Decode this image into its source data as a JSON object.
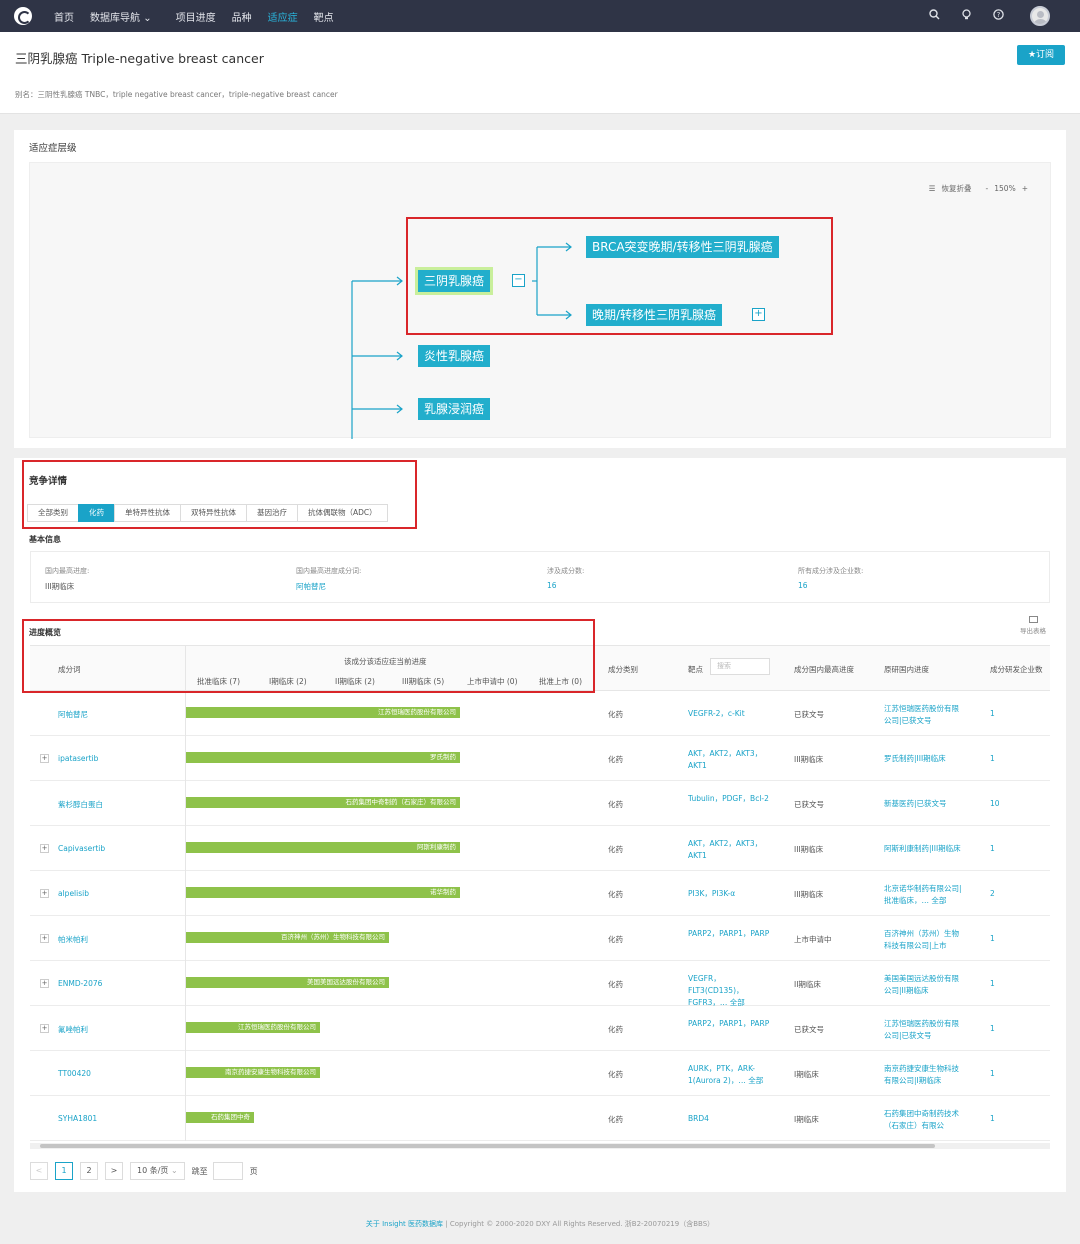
{
  "nav": {
    "items": [
      "首页",
      "数据库导航",
      "项目进度",
      "品种",
      "适应症",
      "靶点"
    ],
    "active": "适应症",
    "dropdown_caret": "⌄"
  },
  "header": {
    "title": "三阴乳腺癌 Triple-negative breast cancer",
    "subscribe": "★订阅",
    "aliases": "别名：三阴性乳腺癌 TNBC，triple negative breast cancer，triple-negative breast cancer"
  },
  "indication": {
    "title": "适应症层级",
    "tools": {
      "toggle_all": "恢复折叠",
      "zoom_minus": "-",
      "zoom": "150%",
      "zoom_plus": "+"
    },
    "nodes": {
      "root": "三阴乳腺癌",
      "child1": "BRCA突变晚期/转移性三阴乳腺癌",
      "child2": "晚期/转移性三阴乳腺癌",
      "sibling1": "炎性乳腺癌",
      "sibling2": "乳腺浸润癌"
    },
    "collapse": "−",
    "expand": "+"
  },
  "competition": {
    "title": "竞争详情",
    "tabs": [
      "全部类别",
      "化药",
      "单特异性抗体",
      "双特异性抗体",
      "基因治疗",
      "抗体偶联物（ADC）"
    ],
    "active_tab": "化药",
    "basic_label": "基本信息",
    "basic": [
      {
        "label": "国内最高进度:",
        "value": "III期临床"
      },
      {
        "label": "国内最高进度成分词:",
        "value": "阿帕替尼"
      },
      {
        "label": "涉及成分数:",
        "value": "16"
      },
      {
        "label": "所有成分涉及企业数:",
        "value": "16"
      }
    ],
    "progress_label": "进度概览",
    "export": "导出表格"
  },
  "table": {
    "headers": {
      "ingredient": "成分词",
      "stage_group": "该成分该适应症当前进度",
      "stages": [
        "批准临床 (7)",
        "I期临床 (2)",
        "II期临床 (2)",
        "III期临床 (5)",
        "上市申请中 (0)",
        "批准上市 (0)"
      ],
      "category": "成分类别",
      "target": "靶点",
      "search_placeholder": "搜索",
      "domestic": "成分国内最高进度",
      "original": "原研国内进度",
      "companies": "成分研发企业数"
    },
    "rows": [
      {
        "name": "阿帕替尼",
        "expand": false,
        "bar": "江苏恒瑞医药股份有限公司",
        "bar_frac": 1.0,
        "category": "化药",
        "target": "VEGFR-2，c-Kit",
        "domestic": "已获文号",
        "original": "江苏恒瑞医药股份有限公司|已获文号",
        "count": "1"
      },
      {
        "name": "ipatasertib",
        "expand": true,
        "bar": "罗氏制药",
        "bar_frac": 1.0,
        "category": "化药",
        "target": "AKT，AKT2，AKT3，AKT1",
        "domestic": "III期临床",
        "original": "罗氏制药|III期临床",
        "count": "1"
      },
      {
        "name": "紫杉醇白蛋白",
        "expand": false,
        "bar": "石药集团中奇制药（石家庄）有限公司",
        "bar_frac": 1.0,
        "category": "化药",
        "target": "Tubulin，PDGF，Bcl-2",
        "domestic": "已获文号",
        "original": "新基医药|已获文号",
        "count": "10"
      },
      {
        "name": "Capivasertib",
        "expand": true,
        "bar": "阿斯利康制药",
        "bar_frac": 1.0,
        "category": "化药",
        "target": "AKT，AKT2，AKT3，AKT1",
        "domestic": "III期临床",
        "original": "阿斯利康制药|III期临床",
        "count": "1"
      },
      {
        "name": "alpelisib",
        "expand": true,
        "bar": "诺华制药",
        "bar_frac": 1.0,
        "category": "化药",
        "target": "PI3K，PI3K-α",
        "domestic": "III期临床",
        "original": "北京诺华制药有限公司|批准临床，…  全部",
        "count": "2"
      },
      {
        "name": "帕米帕利",
        "expand": true,
        "bar": "百济神州（苏州）生物科技有限公司",
        "bar_frac": 0.74,
        "category": "化药",
        "target": "PARP2，PARP1，PARP",
        "domestic": "上市申请中",
        "original": "百济神州（苏州）生物科技有限公司|上市",
        "count": "1"
      },
      {
        "name": "ENMD-2076",
        "expand": true,
        "bar": "美国美国远达股份有限公司",
        "bar_frac": 0.74,
        "category": "化药",
        "target": "VEGFR，FLT3(CD135)，FGFR3，…  全部",
        "domestic": "II期临床",
        "original": "美国美国远达股份有限公司|II期临床",
        "count": "1"
      },
      {
        "name": "氟唑帕利",
        "expand": true,
        "bar": "江苏恒瑞医药股份有限公司",
        "bar_frac": 0.49,
        "category": "化药",
        "target": "PARP2，PARP1，PARP",
        "domestic": "已获文号",
        "original": "江苏恒瑞医药股份有限公司|已获文号",
        "count": "1"
      },
      {
        "name": "TT00420",
        "expand": false,
        "bar": "南京药捷安康生物科技有限公司",
        "bar_frac": 0.49,
        "category": "化药",
        "target": "AURK，PTK，ARK-1(Aurora 2)，…  全部",
        "domestic": "I期临床",
        "original": "南京药捷安康生物科技有限公司|I期临床",
        "count": "1"
      },
      {
        "name": "SYHA1801",
        "expand": false,
        "bar": "石药集团中奇",
        "bar_frac": 0.25,
        "category": "化药",
        "target": "BRD4",
        "domestic": "I期临床",
        "original": "石药集团中奇制药技术（石家庄）有限公",
        "count": "1"
      }
    ]
  },
  "pager": {
    "prev": "<",
    "pages": [
      "1",
      "2"
    ],
    "current": "1",
    "next": ">",
    "size": "10 条/页",
    "goto": "跳至",
    "page_unit": "页"
  },
  "footer": {
    "link": "关于 Insight 医药数据库",
    "text": " | Copyright © 2000-2020 DXY All Rights Reserved. 浙B2-20070219（含BBS）"
  },
  "colors": {
    "accent": "#1aa3c8",
    "nav_bg": "#2f3446",
    "bar": "#8ec24a",
    "highlight_box": "#d9262a",
    "root_glow": "#c9ef9b"
  }
}
